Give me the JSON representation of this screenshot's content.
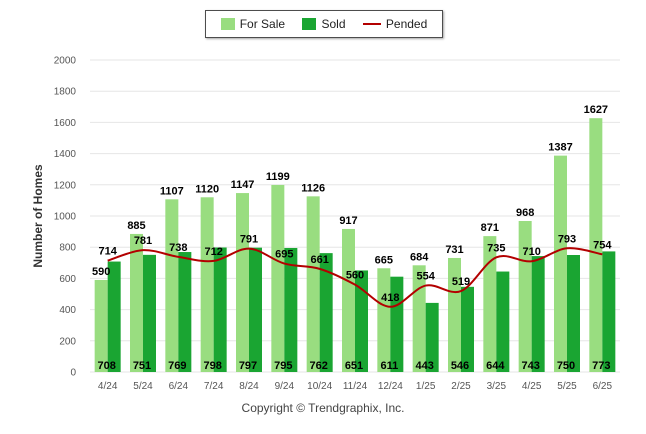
{
  "legend": {
    "for_sale": "For Sale",
    "sold": "Sold",
    "pended": "Pended"
  },
  "copyright": "Copyright © Trendgraphix, Inc.",
  "colors": {
    "for_sale": "#99dd80",
    "sold": "#1aa532",
    "pended": "#b30000",
    "grid": "#e6e6e6"
  },
  "chart_data": {
    "type": "bar",
    "ylabel": "Number of Homes",
    "ylim": [
      0,
      2000
    ],
    "yticks": [
      0,
      200,
      400,
      600,
      800,
      1000,
      1200,
      1400,
      1600,
      1800,
      2000
    ],
    "categories": [
      "4/24",
      "5/24",
      "6/24",
      "7/24",
      "8/24",
      "9/24",
      "10/24",
      "11/24",
      "12/24",
      "1/25",
      "2/25",
      "3/25",
      "4/25",
      "5/25",
      "6/25"
    ],
    "series": [
      {
        "name": "For Sale",
        "kind": "bar",
        "values": [
          590,
          885,
          1107,
          1120,
          1147,
          1199,
          1126,
          917,
          665,
          684,
          731,
          871,
          968,
          1387,
          1627
        ]
      },
      {
        "name": "Sold",
        "kind": "bar",
        "values": [
          708,
          751,
          769,
          798,
          797,
          795,
          762,
          651,
          611,
          443,
          546,
          644,
          743,
          750,
          773
        ]
      },
      {
        "name": "Pended",
        "kind": "line",
        "values": [
          714,
          781,
          738,
          712,
          791,
          695,
          661,
          560,
          418,
          554,
          519,
          735,
          710,
          793,
          754
        ]
      }
    ],
    "legend_position": "top-center",
    "grid": true
  }
}
